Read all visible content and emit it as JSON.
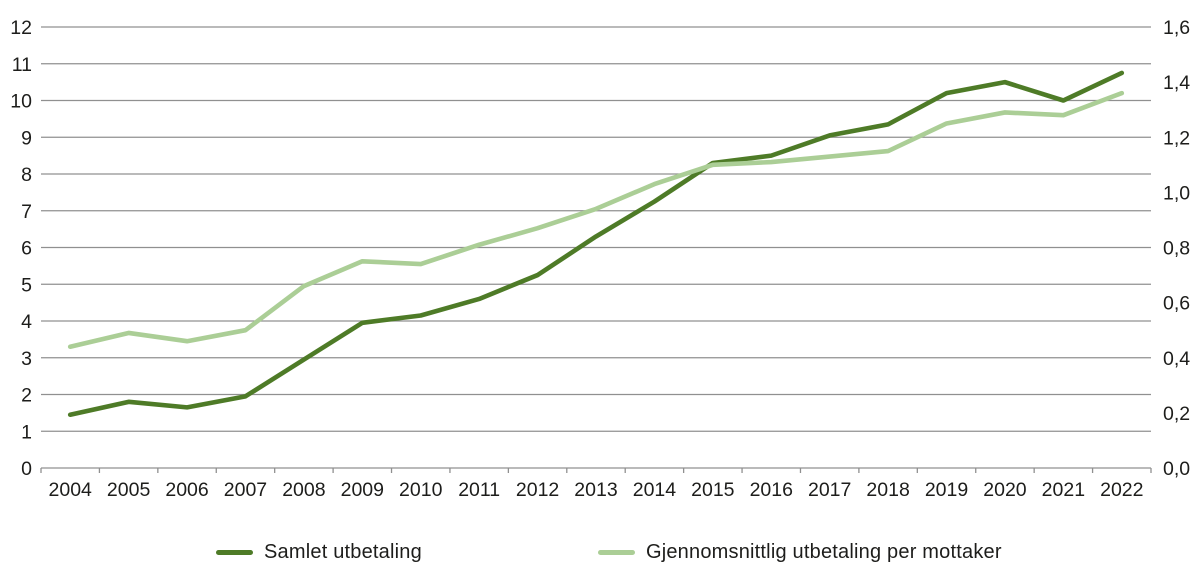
{
  "chart_data": {
    "type": "line",
    "categories": [
      "2004",
      "2005",
      "2006",
      "2007",
      "2008",
      "2009",
      "2010",
      "2011",
      "2012",
      "2013",
      "2014",
      "2015",
      "2016",
      "2017",
      "2018",
      "2019",
      "2020",
      "2021",
      "2022"
    ],
    "series": [
      {
        "name": "Samlet utbetaling",
        "axis": "left",
        "color": "#4e7b27",
        "values": [
          1.45,
          1.8,
          1.65,
          1.95,
          2.95,
          3.95,
          4.15,
          4.6,
          5.25,
          6.3,
          7.25,
          8.3,
          8.5,
          9.05,
          9.35,
          10.2,
          10.5,
          10.0,
          10.75
        ]
      },
      {
        "name": "Gjennomsnittlig utbetaling per mottaker",
        "axis": "right",
        "color": "#abce96",
        "values": [
          0.44,
          0.49,
          0.46,
          0.5,
          0.66,
          0.75,
          0.74,
          0.81,
          0.87,
          0.94,
          1.03,
          1.1,
          1.11,
          1.13,
          1.15,
          1.25,
          1.29,
          1.28,
          1.36
        ]
      }
    ],
    "left_axis": {
      "min": 0,
      "max": 12,
      "step": 1,
      "tick_labels": [
        "0",
        "1",
        "2",
        "3",
        "4",
        "5",
        "6",
        "7",
        "8",
        "9",
        "10",
        "11",
        "12"
      ]
    },
    "right_axis": {
      "min": 0,
      "max": 1.6,
      "step": 0.2,
      "tick_labels": [
        "0,0",
        "0,2",
        "0,4",
        "0,6",
        "0,8",
        "1,0",
        "1,2",
        "1,4",
        "1,6"
      ]
    },
    "grid": true,
    "legend_position": "bottom"
  },
  "colors": {
    "grid": "#909090",
    "axis": "#909090",
    "tick_text": "#1d1d1b",
    "background": "#ffffff"
  }
}
